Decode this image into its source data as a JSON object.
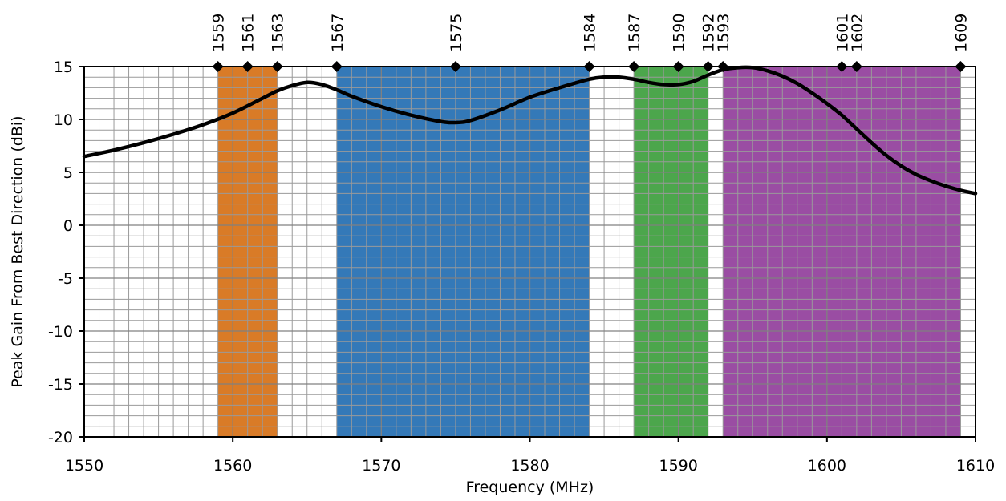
{
  "chart_data": {
    "type": "line",
    "xlabel": "Frequency (MHz)",
    "ylabel": "Peak Gain From Best Direction (dBi)",
    "xlim": [
      1550,
      1610
    ],
    "ylim": [
      -20,
      15
    ],
    "x_ticks": [
      "1550",
      "1560",
      "1570",
      "1580",
      "1590",
      "1600",
      "1610"
    ],
    "y_ticks": [
      "15",
      "10",
      "5",
      "0",
      "-5",
      "-10",
      "-15",
      "-20"
    ],
    "grid": true,
    "bands": [
      {
        "from": 1559,
        "to": 1563,
        "color": "#d97b27"
      },
      {
        "from": 1567,
        "to": 1584,
        "color": "#3479b8"
      },
      {
        "from": 1587,
        "to": 1592,
        "color": "#4ca64c"
      },
      {
        "from": 1593,
        "to": 1609,
        "color": "#9a4da3"
      }
    ],
    "markers": [
      {
        "x": 1559,
        "label": "1559"
      },
      {
        "x": 1561,
        "label": "1561"
      },
      {
        "x": 1563,
        "label": "1563"
      },
      {
        "x": 1567,
        "label": "1567"
      },
      {
        "x": 1575,
        "label": "1575"
      },
      {
        "x": 1584,
        "label": "1584"
      },
      {
        "x": 1587,
        "label": "1587"
      },
      {
        "x": 1590,
        "label": "1590"
      },
      {
        "x": 1592,
        "label": "1592"
      },
      {
        "x": 1593,
        "label": "1593"
      },
      {
        "x": 1601,
        "label": "1601"
      },
      {
        "x": 1602,
        "label": "1602"
      },
      {
        "x": 1609,
        "label": "1609"
      }
    ],
    "series": [
      {
        "color": "#000000",
        "x": [
          1550,
          1552,
          1554,
          1556,
          1558,
          1560,
          1562,
          1563,
          1564,
          1565,
          1566,
          1567,
          1568,
          1570,
          1572,
          1574,
          1575,
          1576,
          1578,
          1580,
          1582,
          1584,
          1585,
          1586,
          1587,
          1588,
          1589,
          1590,
          1591,
          1592,
          1593,
          1594,
          1595,
          1596,
          1597,
          1598,
          1599,
          1600,
          1601,
          1602,
          1603,
          1604,
          1605,
          1606,
          1607,
          1608,
          1609,
          1610
        ],
        "y": [
          6.5,
          7.1,
          7.8,
          8.6,
          9.5,
          10.6,
          12.0,
          12.7,
          13.2,
          13.5,
          13.3,
          12.8,
          12.2,
          11.2,
          10.4,
          9.8,
          9.7,
          9.9,
          10.9,
          12.1,
          13.0,
          13.8,
          14.0,
          14.0,
          13.8,
          13.5,
          13.3,
          13.3,
          13.6,
          14.2,
          14.7,
          14.9,
          14.9,
          14.6,
          14.1,
          13.4,
          12.5,
          11.5,
          10.4,
          9.1,
          7.8,
          6.6,
          5.6,
          4.8,
          4.2,
          3.7,
          3.3,
          3.0
        ]
      }
    ]
  }
}
